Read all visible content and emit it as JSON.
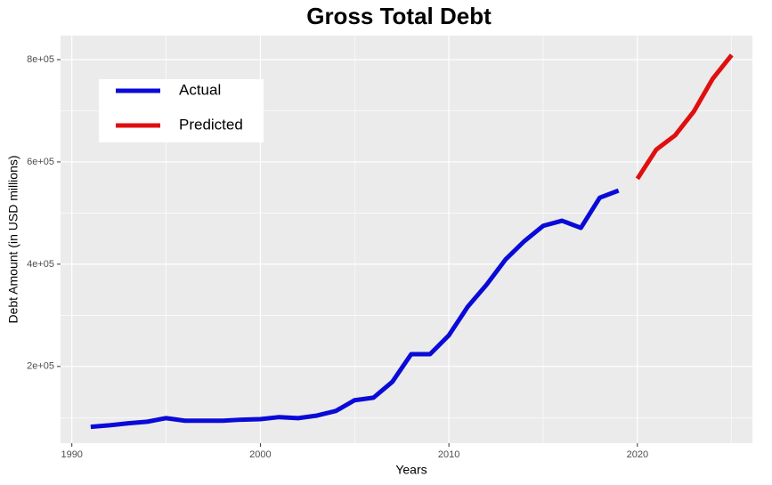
{
  "chart_data": {
    "type": "line",
    "title": "Gross Total Debt",
    "x_label": "Years",
    "y_label": "Debt Amount (in USD millions)",
    "x": [
      1991,
      1992,
      1993,
      1994,
      1995,
      1996,
      1997,
      1998,
      1999,
      2000,
      2001,
      2002,
      2003,
      2004,
      2005,
      2006,
      2007,
      2008,
      2009,
      2010,
      2011,
      2012,
      2013,
      2014,
      2015,
      2016,
      2017,
      2018,
      2019,
      2020,
      2021,
      2022,
      2023,
      2024,
      2025
    ],
    "series": [
      {
        "name": "Actual",
        "color": "#0a0ad8",
        "values": [
          82000,
          85000,
          89000,
          92000,
          99000,
          94000,
          94000,
          94000,
          96000,
          97000,
          101000,
          99000,
          104000,
          113000,
          134000,
          139000,
          170000,
          224000,
          224000,
          261000,
          317000,
          360000,
          409000,
          445000,
          475000,
          485000,
          471000,
          530000,
          544000,
          null,
          null,
          null,
          null,
          null,
          null
        ]
      },
      {
        "name": "Predicted",
        "color": "#e00f0f",
        "values": [
          null,
          null,
          null,
          null,
          null,
          null,
          null,
          null,
          null,
          null,
          null,
          null,
          null,
          null,
          null,
          null,
          null,
          null,
          null,
          null,
          null,
          null,
          null,
          null,
          null,
          null,
          null,
          null,
          null,
          567000,
          624000,
          652000,
          699000,
          763000,
          809000
        ]
      }
    ],
    "xlim": [
      1989.4,
      2026.1
    ],
    "xticks": [
      1990,
      2000,
      2010,
      2020
    ],
    "ylim": [
      50000,
      847000
    ],
    "yticks": [
      {
        "value": 200000,
        "label": "2e+05"
      },
      {
        "value": 400000,
        "label": "4e+05"
      },
      {
        "value": 600000,
        "label": "6e+05"
      },
      {
        "value": 800000,
        "label": "8e+05"
      }
    ],
    "grid": true,
    "legend_position": "top-left"
  }
}
